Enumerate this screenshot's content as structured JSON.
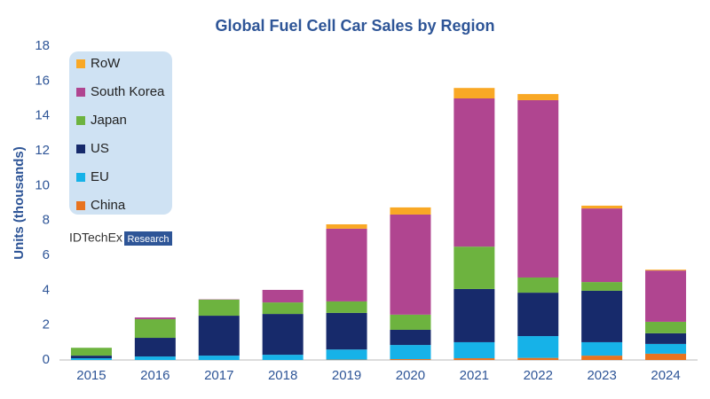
{
  "chart_data": {
    "type": "stacked_bar",
    "title": "Global Fuel Cell Car Sales by Region",
    "y_label": "Units (thousands)",
    "brand": "IDTechEx",
    "brand_tag": "Research",
    "categories": [
      "2015",
      "2016",
      "2017",
      "2018",
      "2019",
      "2020",
      "2021",
      "2022",
      "2023",
      "2024"
    ],
    "series": [
      {
        "name": "China",
        "color": "#e8731f",
        "values": [
          0,
          0,
          0,
          0,
          0.02,
          0.05,
          0.1,
          0.12,
          0.25,
          0.36
        ]
      },
      {
        "name": "EU",
        "color": "#16b2e8",
        "values": [
          0.1,
          0.2,
          0.25,
          0.3,
          0.58,
          0.81,
          0.92,
          1.25,
          0.77,
          0.56
        ]
      },
      {
        "name": "US",
        "color": "#172a6b",
        "values": [
          0.15,
          1.07,
          2.29,
          2.34,
          2.1,
          0.87,
          3.05,
          2.49,
          2.95,
          0.61
        ]
      },
      {
        "name": "Japan",
        "color": "#6db33f",
        "values": [
          0.45,
          1.07,
          0.92,
          0.66,
          0.66,
          0.87,
          2.43,
          0.87,
          0.5,
          0.66
        ]
      },
      {
        "name": "South Korea",
        "color": "#b04590",
        "values": [
          0,
          0.1,
          0.02,
          0.72,
          4.17,
          5.74,
          8.5,
          10.17,
          4.22,
          2.94
        ]
      },
      {
        "name": "RoW",
        "color": "#f9a825",
        "values": [
          0,
          0,
          0,
          0,
          0.25,
          0.41,
          0.6,
          0.35,
          0.16,
          0.05
        ]
      }
    ],
    "ylim": [
      0,
      18
    ],
    "yticks": [
      0,
      2,
      4,
      6,
      8,
      10,
      12,
      14,
      16,
      18
    ],
    "grid": false,
    "legend": "top-left"
  }
}
